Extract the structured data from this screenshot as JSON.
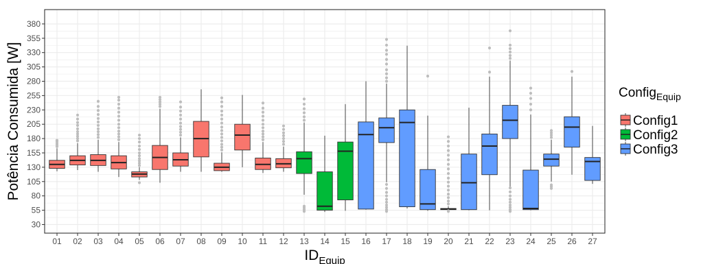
{
  "chart_data": {
    "type": "box",
    "title": "",
    "xlabel": "ID",
    "xlabel_sub": "Equip",
    "ylabel": "Potência Consumida [W]",
    "ylim": [
      15,
      405
    ],
    "yticks": [
      30,
      55,
      80,
      105,
      130,
      155,
      180,
      205,
      230,
      255,
      280,
      305,
      330,
      355,
      380
    ],
    "grid": true,
    "legend": {
      "title": "Config",
      "title_sub": "Equip",
      "placement": "right",
      "entries": [
        {
          "label": "Config1",
          "key": "c1"
        },
        {
          "label": "Config2",
          "key": "c2"
        },
        {
          "label": "Config3",
          "key": "c3"
        }
      ]
    },
    "colors": {
      "c1": "#F8766D",
      "c2": "#00BA38",
      "c3": "#619CFF",
      "outlier": "#bdbdbd",
      "grid": "#ebebeb",
      "text": "#4d4d4d"
    },
    "categories": [
      "01",
      "02",
      "03",
      "04",
      "05",
      "06",
      "07",
      "08",
      "09",
      "10",
      "11",
      "12",
      "13",
      "14",
      "15",
      "16",
      "17",
      "18",
      "19",
      "20",
      "21",
      "22",
      "23",
      "24",
      "25",
      "26",
      "27"
    ],
    "boxes": [
      {
        "id": "01",
        "config": "c1",
        "wlo": 123,
        "q1": 128,
        "med": 135,
        "q3": 142,
        "whi": 163,
        "out": [
          166,
          169,
          172,
          175,
          177
        ]
      },
      {
        "id": "02",
        "config": "c1",
        "wlo": 125,
        "q1": 134,
        "med": 142,
        "q3": 150,
        "whi": 172,
        "out": [
          176,
          180,
          184,
          188,
          192,
          197,
          203,
          208,
          214,
          221
        ]
      },
      {
        "id": "03",
        "config": "c1",
        "wlo": 122,
        "q1": 133,
        "med": 142,
        "q3": 152,
        "whi": 178,
        "out": [
          182,
          187,
          192,
          197,
          203,
          209,
          215,
          222,
          229,
          236,
          245
        ]
      },
      {
        "id": "04",
        "config": "c1",
        "wlo": 113,
        "q1": 127,
        "med": 138,
        "q3": 150,
        "whi": 174,
        "out": [
          178,
          183,
          188,
          193,
          199,
          205,
          212,
          219,
          226,
          233,
          240,
          247,
          252
        ]
      },
      {
        "id": "05",
        "config": "c1",
        "wlo": 108,
        "q1": 113,
        "med": 118,
        "q3": 122,
        "whi": 130,
        "out": [
          103,
          133,
          137,
          141,
          145,
          150,
          155,
          161,
          167,
          174,
          180,
          186
        ]
      },
      {
        "id": "06",
        "config": "c1",
        "wlo": 103,
        "q1": 126,
        "med": 147,
        "q3": 168,
        "whi": 232,
        "out": [
          236,
          240,
          244,
          248,
          252
        ]
      },
      {
        "id": "07",
        "config": "c1",
        "wlo": 122,
        "q1": 132,
        "med": 143,
        "q3": 155,
        "whi": 182,
        "out": [
          186,
          191,
          196,
          201,
          207,
          214,
          221,
          228,
          235,
          244
        ]
      },
      {
        "id": "08",
        "config": "c1",
        "wlo": 122,
        "q1": 148,
        "med": 180,
        "q3": 210,
        "whi": 266,
        "out": []
      },
      {
        "id": "09",
        "config": "c1",
        "wlo": 122,
        "q1": 124,
        "med": 130,
        "q3": 137,
        "whi": 156,
        "out": [
          160,
          165,
          170,
          176,
          182,
          188,
          194,
          200,
          207,
          214,
          221,
          228,
          236,
          244,
          251
        ]
      },
      {
        "id": "10",
        "config": "c1",
        "wlo": 130,
        "q1": 160,
        "med": 186,
        "q3": 205,
        "whi": 256,
        "out": []
      },
      {
        "id": "11",
        "config": "c1",
        "wlo": 120,
        "q1": 126,
        "med": 135,
        "q3": 146,
        "whi": 174,
        "out": [
          178,
          183,
          188,
          193,
          199,
          205,
          212,
          219,
          226,
          233,
          242
        ]
      },
      {
        "id": "12",
        "config": "c1",
        "wlo": 122,
        "q1": 129,
        "med": 136,
        "q3": 145,
        "whi": 166,
        "out": [
          170,
          175,
          180,
          185,
          190,
          196,
          202
        ]
      },
      {
        "id": "13",
        "config": "c2",
        "wlo": 82,
        "q1": 119,
        "med": 145,
        "q3": 157,
        "whi": 208,
        "out": [
          53,
          56,
          59,
          62,
          212,
          218,
          225,
          232,
          240,
          249
        ]
      },
      {
        "id": "14",
        "config": "c2",
        "wlo": 52,
        "q1": 55,
        "med": 62,
        "q3": 122,
        "whi": 185,
        "out": []
      },
      {
        "id": "15",
        "config": "c2",
        "wlo": 54,
        "q1": 73,
        "med": 158,
        "q3": 174,
        "whi": 240,
        "out": []
      },
      {
        "id": "16",
        "config": "c3",
        "wlo": 56,
        "q1": 57,
        "med": 187,
        "q3": 209,
        "whi": 280,
        "out": []
      },
      {
        "id": "17",
        "config": "c3",
        "wlo": 104,
        "q1": 173,
        "med": 199,
        "q3": 216,
        "whi": 276,
        "out": [
          53,
          56,
          60,
          64,
          69,
          74,
          80,
          86,
          93,
          100,
          280,
          286,
          293,
          300,
          310,
          318,
          327,
          334,
          343,
          353
        ]
      },
      {
        "id": "18",
        "config": "c3",
        "wlo": 58,
        "q1": 61,
        "med": 208,
        "q3": 230,
        "whi": 342,
        "out": []
      },
      {
        "id": "19",
        "config": "c3",
        "wlo": 54,
        "q1": 56,
        "med": 66,
        "q3": 126,
        "whi": 220,
        "out": [
          289
        ]
      },
      {
        "id": "20",
        "config": "c3",
        "wlo": 55,
        "q1": 56,
        "med": 57,
        "q3": 58,
        "whi": 62,
        "out": [
          53,
          54,
          66,
          71,
          77,
          83,
          90,
          97,
          104,
          111,
          119,
          127,
          135,
          143,
          151,
          159,
          167,
          175,
          183
        ]
      },
      {
        "id": "21",
        "config": "c3",
        "wlo": 55,
        "q1": 56,
        "med": 103,
        "q3": 153,
        "whi": 234,
        "out": []
      },
      {
        "id": "22",
        "config": "c3",
        "wlo": 55,
        "q1": 117,
        "med": 167,
        "q3": 188,
        "whi": 288,
        "out": [
          296,
          338
        ]
      },
      {
        "id": "23",
        "config": "c3",
        "wlo": 96,
        "q1": 180,
        "med": 212,
        "q3": 238,
        "whi": 316,
        "out": [
          53,
          56,
          60,
          64,
          69,
          74,
          80,
          87,
          94,
          320,
          325,
          331,
          337,
          343,
          368
        ]
      },
      {
        "id": "24",
        "config": "c3",
        "wlo": 55,
        "q1": 56,
        "med": 58,
        "q3": 125,
        "whi": 222,
        "out": [
          230,
          240,
          250,
          259,
          268
        ]
      },
      {
        "id": "25",
        "config": "c3",
        "wlo": 105,
        "q1": 132,
        "med": 144,
        "q3": 153,
        "whi": 178,
        "out": [
          93,
          96,
          99,
          182,
          186,
          190,
          194
        ]
      },
      {
        "id": "26",
        "config": "c3",
        "wlo": 117,
        "q1": 165,
        "med": 200,
        "q3": 218,
        "whi": 288,
        "out": [
          297
        ]
      },
      {
        "id": "27",
        "config": "c3",
        "wlo": 101,
        "q1": 107,
        "med": 140,
        "q3": 147,
        "whi": 202,
        "out": []
      }
    ]
  }
}
